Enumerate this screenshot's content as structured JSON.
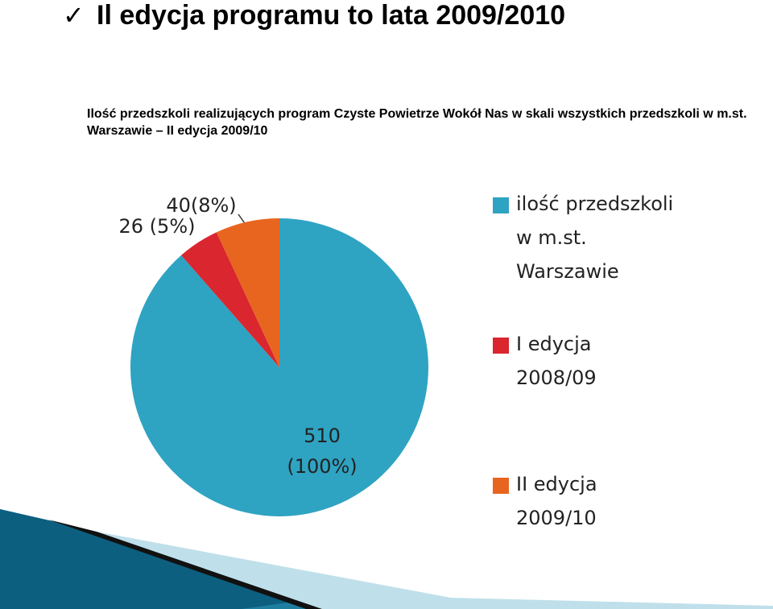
{
  "header": {
    "title": "Il edycja programu to lata 2009/2010"
  },
  "chart_data": {
    "type": "pie",
    "title": "Ilość przedszkoli realizujących program Czyste Powietrze Wokół Nas w skali wszystkich przedszkoli w m.st. Warszawie – II edycja 2009/10",
    "categories": [
      "ilość przedszkoli w m.st. Warszawie",
      "I edycja 2008/09",
      "II edycja 2009/10"
    ],
    "values": [
      510,
      26,
      40
    ],
    "value_labels": [
      "510 (100%)",
      "26 (5%)",
      "40(8%)"
    ],
    "colors": [
      "#2fa3c2",
      "#d9262f",
      "#e86520"
    ],
    "legend": "right"
  }
}
